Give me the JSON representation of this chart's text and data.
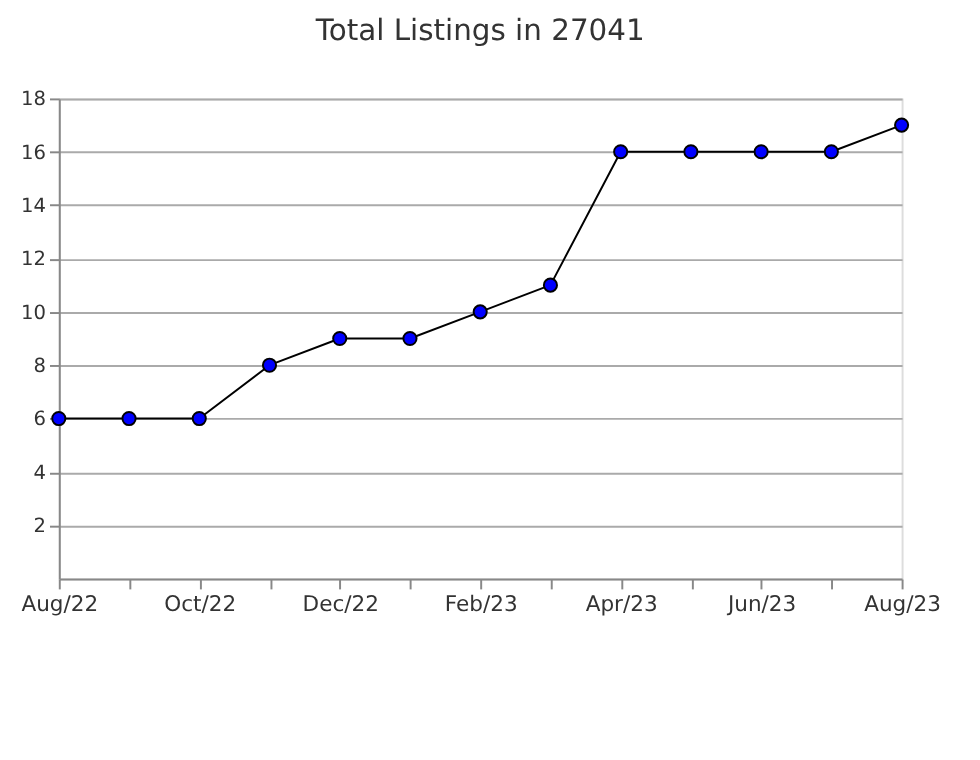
{
  "chart_data": {
    "type": "line",
    "title": "Total Listings in 27041",
    "categories": [
      "Aug/22",
      null,
      "Oct/22",
      null,
      "Dec/22",
      null,
      "Feb/23",
      null,
      "Apr/23",
      null,
      "Jun/23",
      null,
      "Aug/23"
    ],
    "series": [
      {
        "color": "#0000ff",
        "values": [
          6,
          6,
          6,
          8,
          9,
          9,
          10,
          11,
          16,
          16,
          16,
          16,
          17
        ]
      }
    ],
    "ylim": [
      0,
      18
    ],
    "yticks": [
      2,
      4,
      6,
      8,
      10,
      12,
      14,
      16,
      18
    ],
    "grid": "y",
    "marker": "circle",
    "line_style": "solid"
  }
}
